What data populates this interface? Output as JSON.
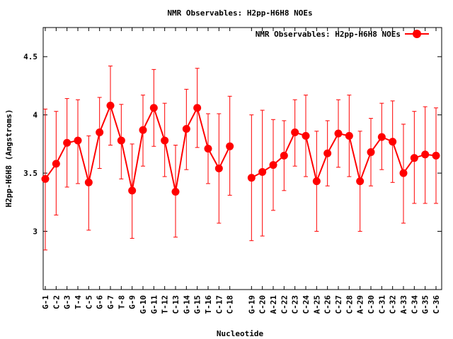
{
  "chart_data": {
    "type": "line",
    "title": "NMR Observables: H2pp-H6H8 NOEs",
    "xlabel": "Nucleotide",
    "ylabel": "H2pp-H6H8 (Angstroms)",
    "ylim": [
      2.5,
      4.75
    ],
    "yticks": [
      "3",
      "3.5",
      "4",
      "4.5"
    ],
    "ytick_values": [
      3,
      3.5,
      4,
      4.5
    ],
    "grid": false,
    "legend_position": "top-right",
    "series": [
      {
        "name": "NMR Observables: H2pp-H6H8 NOEs",
        "color": "#ff0000",
        "segments": [
          {
            "categories": [
              "G-1",
              "C-2",
              "G-3",
              "T-4",
              "C-5",
              "G-6",
              "G-7",
              "T-8",
              "G-9",
              "G-10",
              "G-11",
              "T-12",
              "C-13",
              "G-14",
              "G-15",
              "T-16",
              "C-17",
              "C-18"
            ],
            "values": [
              3.45,
              3.58,
              3.76,
              3.78,
              3.42,
              3.85,
              4.08,
              3.78,
              3.35,
              3.87,
              4.06,
              3.78,
              3.34,
              3.88,
              4.06,
              3.71,
              3.54,
              3.73
            ],
            "error_low": [
              2.84,
              3.14,
              3.38,
              3.41,
              3.01,
              3.54,
              3.74,
              3.45,
              2.94,
              3.56,
              3.73,
              3.47,
              2.95,
              3.53,
              3.72,
              3.41,
              3.07,
              3.31
            ],
            "error_high": [
              4.05,
              4.03,
              4.14,
              4.13,
              3.82,
              4.15,
              4.42,
              4.09,
              3.75,
              4.17,
              4.39,
              4.1,
              3.74,
              4.22,
              4.4,
              4.01,
              4.01,
              4.16
            ]
          },
          {
            "categories": [
              "G-19",
              "C-20",
              "A-21",
              "C-22",
              "C-23",
              "C-24",
              "A-25",
              "C-26",
              "C-27",
              "C-28",
              "A-29",
              "C-30",
              "C-31",
              "C-32",
              "A-33",
              "C-34",
              "G-35",
              "C-36"
            ],
            "values": [
              3.46,
              3.51,
              3.57,
              3.65,
              3.85,
              3.82,
              3.43,
              3.67,
              3.84,
              3.82,
              3.43,
              3.68,
              3.81,
              3.77,
              3.5,
              3.63,
              3.66,
              3.65
            ],
            "error_low": [
              2.92,
              2.96,
              3.18,
              3.35,
              3.56,
              3.47,
              3.0,
              3.39,
              3.55,
              3.47,
              3.0,
              3.39,
              3.53,
              3.42,
              3.07,
              3.24,
              3.24,
              3.24
            ],
            "error_high": [
              4.0,
              4.04,
              3.96,
              3.95,
              4.13,
              4.17,
              3.86,
              3.95,
              4.13,
              4.17,
              3.86,
              3.97,
              4.1,
              4.12,
              3.92,
              4.03,
              4.07,
              4.06
            ]
          }
        ]
      }
    ]
  }
}
